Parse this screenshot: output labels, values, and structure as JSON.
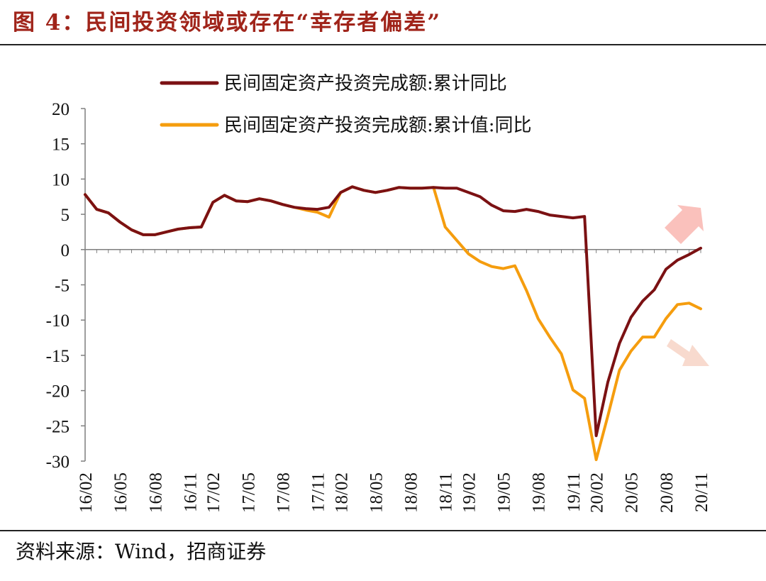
{
  "header": {
    "title": "图 4：民间投资领域或存在“幸存者偏差”"
  },
  "footer": {
    "source": "资料来源：Wind，招商证券"
  },
  "chart_data": {
    "type": "line",
    "categories": [
      "16/02",
      "16/03",
      "16/04",
      "16/05",
      "16/06",
      "16/07",
      "16/08",
      "16/09",
      "16/10",
      "16/11",
      "16/12",
      "17/02",
      "17/03",
      "17/04",
      "17/05",
      "17/06",
      "17/07",
      "17/08",
      "17/09",
      "17/10",
      "17/11",
      "17/12",
      "18/02",
      "18/03",
      "18/04",
      "18/05",
      "18/06",
      "18/07",
      "18/08",
      "18/09",
      "18/10",
      "18/11",
      "18/12",
      "19/02",
      "19/03",
      "19/04",
      "19/05",
      "19/06",
      "19/07",
      "19/08",
      "19/09",
      "19/10",
      "19/11",
      "19/12",
      "20/02",
      "20/03",
      "20/04",
      "20/05",
      "20/06",
      "20/07",
      "20/08",
      "20/09",
      "20/10",
      "20/11"
    ],
    "tick_labels": [
      "16/02",
      "16/05",
      "16/08",
      "16/11",
      "17/02",
      "17/05",
      "17/08",
      "17/11",
      "18/02",
      "18/05",
      "18/08",
      "18/11",
      "19/02",
      "19/05",
      "19/08",
      "19/11",
      "20/02",
      "20/05",
      "20/08",
      "20/11"
    ],
    "yticks": [
      20,
      15,
      10,
      5,
      0,
      -5,
      -10,
      -15,
      -20,
      -25,
      -30
    ],
    "ylim": [
      -30,
      20
    ],
    "series": [
      {
        "name": "民间固定资产投资完成额:累计同比",
        "color": "#7B1113",
        "values": [
          7.8,
          5.7,
          5.2,
          3.9,
          2.8,
          2.1,
          2.1,
          2.5,
          2.9,
          3.1,
          3.2,
          6.7,
          7.7,
          6.9,
          6.8,
          7.2,
          6.9,
          6.4,
          6.0,
          5.8,
          5.7,
          6.0,
          8.1,
          8.9,
          8.4,
          8.1,
          8.4,
          8.8,
          8.7,
          8.7,
          8.8,
          8.7,
          8.7,
          8.1,
          7.5,
          6.3,
          5.5,
          5.4,
          5.7,
          5.4,
          4.9,
          4.7,
          4.5,
          4.7,
          -26.4,
          -18.8,
          -13.3,
          -9.6,
          -7.3,
          -5.7,
          -2.8,
          -1.5,
          -0.7,
          0.2
        ]
      },
      {
        "name": "民间固定资产投资完成额:累计值:同比",
        "color": "#F59D0E",
        "values": [
          7.8,
          5.7,
          5.2,
          3.9,
          2.8,
          2.1,
          2.1,
          2.5,
          2.9,
          3.1,
          3.2,
          6.7,
          7.7,
          6.9,
          6.8,
          7.2,
          6.9,
          6.4,
          6.0,
          5.6,
          5.3,
          4.6,
          8.1,
          8.9,
          8.4,
          8.1,
          8.4,
          8.8,
          8.7,
          8.7,
          8.8,
          3.2,
          1.3,
          -0.6,
          -1.7,
          -2.4,
          -2.7,
          -2.3,
          -5.8,
          -9.8,
          -12.4,
          -14.8,
          -19.9,
          -21.1,
          -29.8,
          -23.6,
          -17.1,
          -14.4,
          -12.4,
          -12.4,
          -9.8,
          -7.8,
          -7.6,
          -8.4
        ]
      }
    ],
    "annotations": [
      {
        "type": "arrow",
        "direction": "up-right",
        "color": "#F9B6B0"
      },
      {
        "type": "arrow",
        "direction": "down-right",
        "color": "#F7D3C6"
      }
    ],
    "legend_placement": "top"
  }
}
